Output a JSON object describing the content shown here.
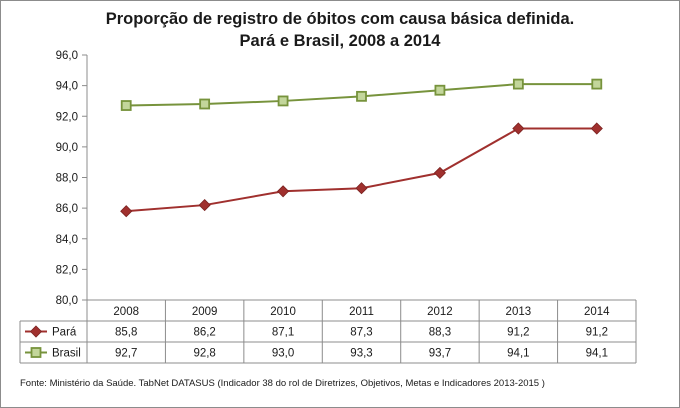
{
  "chart_data": {
    "type": "line",
    "title_line1": "Proporção de registro de óbitos com causa básica definida.",
    "title_line2": "Pará e Brasil, 2008 a 2014",
    "categories": [
      "2008",
      "2009",
      "2010",
      "2011",
      "2012",
      "2013",
      "2014"
    ],
    "ytick_labels": [
      "80,0",
      "82,0",
      "84,0",
      "86,0",
      "88,0",
      "90,0",
      "92,0",
      "94,0",
      "96,0"
    ],
    "ylim": [
      80,
      96
    ],
    "ystep": 2,
    "series": [
      {
        "name": "Pará",
        "values": [
          85.8,
          86.2,
          87.1,
          87.3,
          88.3,
          91.2,
          91.2
        ],
        "labels": [
          "85,8",
          "86,2",
          "87,1",
          "87,3",
          "88,3",
          "91,2",
          "91,2"
        ],
        "color": "#a0302e",
        "marker": "diamond"
      },
      {
        "name": "Brasil",
        "values": [
          92.7,
          92.8,
          93.0,
          93.3,
          93.7,
          94.1,
          94.1
        ],
        "labels": [
          "92,7",
          "92,8",
          "93,0",
          "93,3",
          "93,7",
          "94,1",
          "94,1"
        ],
        "color": "#77933c",
        "marker": "square"
      }
    ],
    "source": "Fonte: Ministério da Saúde. TabNet DATASUS (Indicador 38 do rol de Diretrizes, Objetivos, Metas e Indicadores 2013-2015 )"
  }
}
